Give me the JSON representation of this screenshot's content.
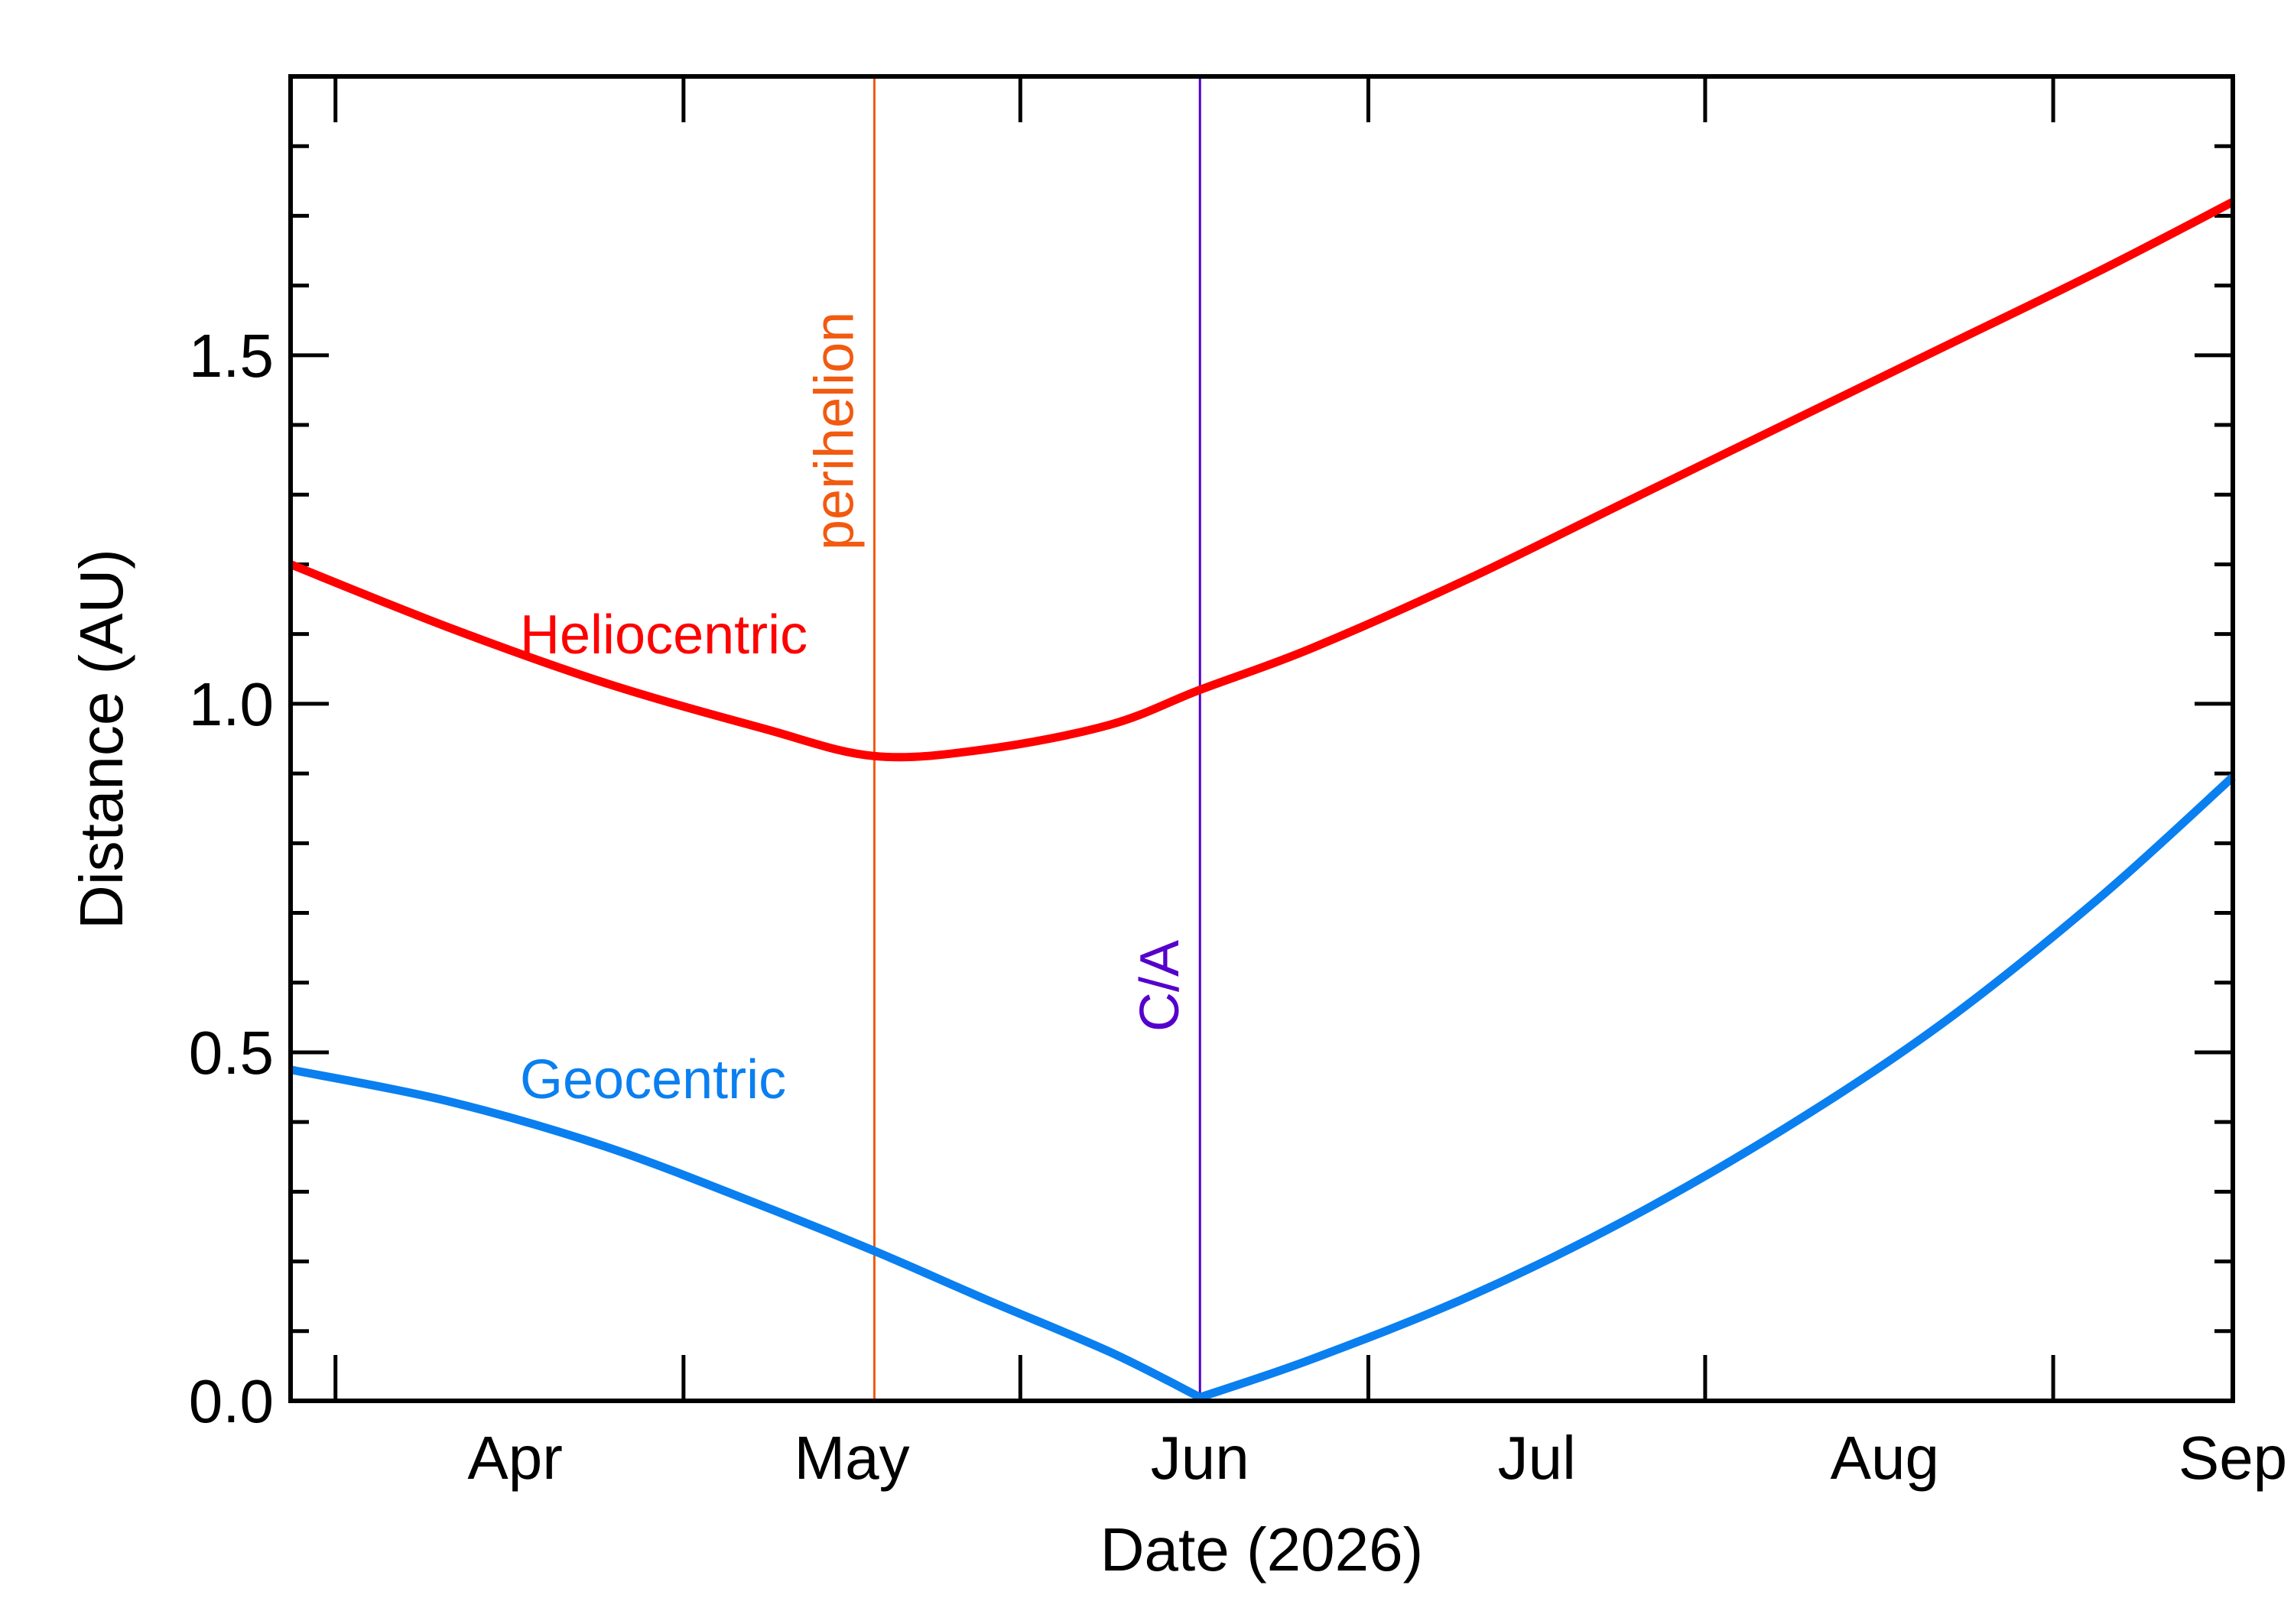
{
  "chart_data": {
    "type": "line",
    "xlabel": "Date (2026)",
    "ylabel": "Distance (AU)",
    "xlim": [
      "2026-03-12",
      "2026-09-01"
    ],
    "ylim": [
      0.0,
      1.9
    ],
    "x_ticks": [
      {
        "date": "2026-04-01",
        "label": "Apr"
      },
      {
        "date": "2026-05-01",
        "label": "May"
      },
      {
        "date": "2026-06-01",
        "label": "Jun"
      },
      {
        "date": "2026-07-01",
        "label": "Jul"
      },
      {
        "date": "2026-08-01",
        "label": "Aug"
      },
      {
        "date": "2026-09-01",
        "label": "Sep"
      }
    ],
    "x_minor_ticks": [
      "2026-04-16",
      "2026-05-16",
      "2026-06-16",
      "2026-07-16",
      "2026-08-16"
    ],
    "y_ticks": [
      {
        "value": 0.0,
        "label": "0.0"
      },
      {
        "value": 0.5,
        "label": "0.5"
      },
      {
        "value": 1.0,
        "label": "1.0"
      },
      {
        "value": 1.5,
        "label": "1.5"
      }
    ],
    "y_minor_step": 0.1,
    "series": [
      {
        "name": "Heliocentric",
        "color": "#ff0000",
        "x": [
          "2026-03-12",
          "2026-03-26",
          "2026-04-09",
          "2026-04-23",
          "2026-05-03",
          "2026-05-13",
          "2026-05-24",
          "2026-06-01",
          "2026-06-11",
          "2026-06-25",
          "2026-07-09",
          "2026-07-23",
          "2026-08-06",
          "2026-08-20",
          "2026-09-01"
        ],
        "y": [
          1.2,
          1.11,
          1.03,
          0.965,
          0.925,
          0.935,
          0.97,
          1.02,
          1.08,
          1.18,
          1.29,
          1.4,
          1.51,
          1.62,
          1.72
        ]
      },
      {
        "name": "Geocentric",
        "color": "#0a7ff0",
        "x": [
          "2026-03-12",
          "2026-03-26",
          "2026-04-09",
          "2026-04-23",
          "2026-05-03",
          "2026-05-13",
          "2026-05-24",
          "2026-06-01",
          "2026-06-11",
          "2026-06-25",
          "2026-07-09",
          "2026-07-23",
          "2026-08-06",
          "2026-08-20",
          "2026-09-01"
        ],
        "y": [
          0.475,
          0.43,
          0.365,
          0.28,
          0.215,
          0.145,
          0.07,
          0.005,
          0.06,
          0.15,
          0.26,
          0.39,
          0.54,
          0.72,
          0.895
        ]
      }
    ],
    "vlines": [
      {
        "date": "2026-05-03",
        "label": "perihelion",
        "color": "#f25a10"
      },
      {
        "date": "2026-06-01",
        "label": "C/A",
        "color": "#5500cc"
      }
    ],
    "grid": false
  }
}
